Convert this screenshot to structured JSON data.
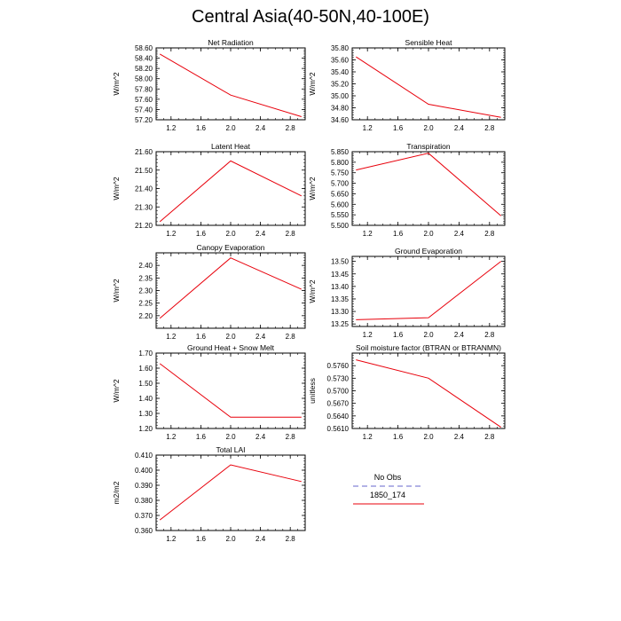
{
  "title": "Central Asia(40-50N,40-100E)",
  "colors": {
    "model_line": "#e8000b",
    "obs_line": "#9999dd",
    "axis": "#000000"
  },
  "legend": {
    "entries": [
      {
        "label": "No Obs",
        "style": "dashed",
        "color": "#9999dd"
      },
      {
        "label": "1850_174",
        "style": "solid",
        "color": "#e8000b"
      }
    ]
  },
  "chart_data": [
    {
      "type": "line",
      "title": "Net Radiation",
      "ylabel": "W/m^2",
      "xlim": [
        1,
        3
      ],
      "ylim": [
        57.2,
        58.6
      ],
      "xticks": [
        "1.2",
        "1.6",
        "2.0",
        "2.4",
        "2.8"
      ],
      "yticks": [
        "57.20",
        "57.40",
        "57.60",
        "57.80",
        "58.00",
        "58.20",
        "58.40",
        "58.60"
      ],
      "series": [
        {
          "name": "1850_174",
          "x": [
            1.05,
            2.0,
            2.95
          ],
          "y": [
            58.48,
            57.68,
            57.26
          ]
        }
      ]
    },
    {
      "type": "line",
      "title": "Sensible Heat",
      "ylabel": "W/m^2",
      "xlim": [
        1,
        3
      ],
      "ylim": [
        34.6,
        35.8
      ],
      "xticks": [
        "1.2",
        "1.6",
        "2.0",
        "2.4",
        "2.8"
      ],
      "yticks": [
        "34.60",
        "34.80",
        "35.00",
        "35.20",
        "35.40",
        "35.60",
        "35.80"
      ],
      "series": [
        {
          "name": "1850_174",
          "x": [
            1.05,
            2.0,
            2.95
          ],
          "y": [
            35.65,
            34.86,
            34.64
          ]
        }
      ]
    },
    {
      "type": "line",
      "title": "Latent Heat",
      "ylabel": "W/m^2",
      "xlim": [
        1,
        3
      ],
      "ylim": [
        21.2,
        21.6
      ],
      "xticks": [
        "1.2",
        "1.6",
        "2.0",
        "2.4",
        "2.8"
      ],
      "yticks": [
        "21.20",
        "21.30",
        "21.40",
        "21.50",
        "21.60"
      ],
      "series": [
        {
          "name": "1850_174",
          "x": [
            1.05,
            2.0,
            2.95
          ],
          "y": [
            21.22,
            21.55,
            21.36
          ]
        }
      ]
    },
    {
      "type": "line",
      "title": "Transpiration",
      "ylabel": "W/m^2",
      "xlim": [
        1,
        3
      ],
      "ylim": [
        5.5,
        5.85
      ],
      "xticks": [
        "1.2",
        "1.6",
        "2.0",
        "2.4",
        "2.8"
      ],
      "yticks": [
        "5.500",
        "5.550",
        "5.600",
        "5.650",
        "5.700",
        "5.750",
        "5.800",
        "5.850"
      ],
      "series": [
        {
          "name": "1850_174",
          "x": [
            1.05,
            2.0,
            2.95
          ],
          "y": [
            5.763,
            5.843,
            5.545
          ]
        }
      ]
    },
    {
      "type": "line",
      "title": "Canopy Evaporation",
      "ylabel": "W/m^2",
      "xlim": [
        1,
        3
      ],
      "ylim": [
        2.15,
        2.45
      ],
      "xticks": [
        "1.2",
        "1.6",
        "2.0",
        "2.4",
        "2.8"
      ],
      "yticks": [
        "2.20",
        "2.25",
        "2.30",
        "2.35",
        "2.40"
      ],
      "series": [
        {
          "name": "1850_174",
          "x": [
            1.05,
            2.0,
            2.95
          ],
          "y": [
            2.19,
            2.43,
            2.305
          ]
        }
      ]
    },
    {
      "type": "line",
      "title": "Ground Evaporation",
      "ylabel": "W/m^2",
      "xlim": [
        1,
        3
      ],
      "ylim": [
        13.24,
        13.52
      ],
      "xticks": [
        "1.2",
        "1.6",
        "2.0",
        "2.4",
        "2.8"
      ],
      "yticks": [
        "13.25",
        "13.30",
        "13.35",
        "13.40",
        "13.45",
        "13.50"
      ],
      "series": [
        {
          "name": "1850_174",
          "x": [
            1.05,
            2.0,
            2.95
          ],
          "y": [
            13.267,
            13.275,
            13.5
          ]
        }
      ]
    },
    {
      "type": "line",
      "title": "Ground Heat + Snow Melt",
      "ylabel": "W/m^2",
      "xlim": [
        1,
        3
      ],
      "ylim": [
        1.2,
        1.7
      ],
      "xticks": [
        "1.2",
        "1.6",
        "2.0",
        "2.4",
        "2.8"
      ],
      "yticks": [
        "1.20",
        "1.30",
        "1.40",
        "1.50",
        "1.60",
        "1.70"
      ],
      "series": [
        {
          "name": "1850_174",
          "x": [
            1.05,
            2.0,
            2.95
          ],
          "y": [
            1.63,
            1.275,
            1.275
          ]
        }
      ]
    },
    {
      "type": "line",
      "title": "Soil moisture factor (BTRAN or BTRANMN)",
      "ylabel": "unitless",
      "xlim": [
        1,
        3
      ],
      "ylim": [
        0.561,
        0.579
      ],
      "xticks": [
        "1.2",
        "1.6",
        "2.0",
        "2.4",
        "2.8"
      ],
      "yticks": [
        "0.5610",
        "0.5640",
        "0.5670",
        "0.5700",
        "0.5730",
        "0.5760"
      ],
      "series": [
        {
          "name": "1850_174",
          "x": [
            1.05,
            2.0,
            2.95
          ],
          "y": [
            0.5774,
            0.573,
            0.5613
          ]
        }
      ]
    },
    {
      "type": "line",
      "title": "Total LAI",
      "ylabel": "m2/m2",
      "xlim": [
        1,
        3
      ],
      "ylim": [
        0.36,
        0.41
      ],
      "xticks": [
        "1.2",
        "1.6",
        "2.0",
        "2.4",
        "2.8"
      ],
      "yticks": [
        "0.360",
        "0.370",
        "0.380",
        "0.390",
        "0.400",
        "0.410"
      ],
      "series": [
        {
          "name": "1850_174",
          "x": [
            1.05,
            2.0,
            2.95
          ],
          "y": [
            0.367,
            0.4035,
            0.3925
          ]
        }
      ]
    }
  ]
}
